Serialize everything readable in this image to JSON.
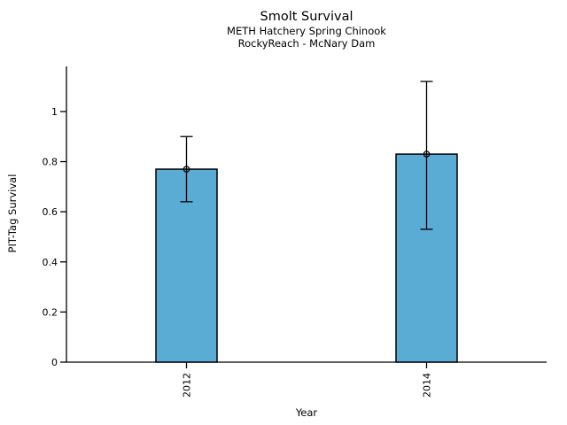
{
  "title": "Smolt Survival",
  "subtitle1": "METH Hatchery Spring Chinook",
  "subtitle2": "RockyReach - McNary Dam",
  "chart_data": {
    "type": "bar",
    "title": "Smolt Survival",
    "subtitles": [
      "METH Hatchery Spring Chinook",
      "RockyReach - McNary Dam"
    ],
    "xlabel": "Year",
    "ylabel": "PIT-Tag Survival",
    "categories": [
      "2012",
      "2014"
    ],
    "values": [
      0.77,
      0.83
    ],
    "error_low": [
      0.64,
      0.53
    ],
    "error_high": [
      0.9,
      1.12
    ],
    "yticks": [
      0,
      0.2,
      0.4,
      0.6,
      0.8,
      1
    ],
    "ytick_labels": [
      "0",
      "0.2",
      "0.4",
      "0.6",
      "0.8",
      "1"
    ],
    "ylim": [
      0,
      1.18
    ],
    "grid": false,
    "legend": false,
    "marker": "open-circle",
    "bar_color": "#5BACD5",
    "bar_edge_color": "#000000",
    "axis_color": "#000000",
    "text_color": "#000000",
    "background_color": "#ffffff"
  }
}
